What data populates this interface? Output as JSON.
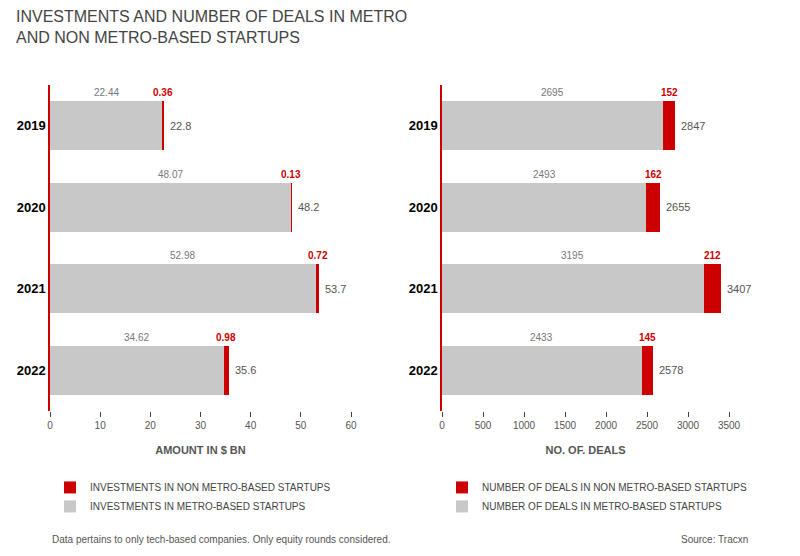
{
  "title": "INVESTMENTS AND NUMBER OF DEALS IN METRO\nAND NON METRO-BASED STARTUPS",
  "annotations": [
    "Data pertains to only tech-based companies. Only equity rounds considered.",
    "Source: Tracxn"
  ],
  "chart_data": [
    {
      "type": "bar",
      "orientation": "horizontal",
      "stacked": true,
      "data_labels": true,
      "grid": false,
      "legend": "bottom",
      "categories": [
        "2019",
        "2020",
        "2021",
        "2022"
      ],
      "series": [
        {
          "name": "INVESTMENTS IN METRO-BASED STARTUPS",
          "color": "#c8c8c8",
          "values": [
            22.44,
            48.07,
            52.98,
            34.62
          ]
        },
        {
          "name": "INVESTMENTS IN NON METRO-BASED STARTUPS",
          "color": "#cc0000",
          "values": [
            0.36,
            0.13,
            0.72,
            0.98
          ]
        }
      ],
      "totals": [
        22.8,
        48.2,
        53.7,
        35.6
      ],
      "xlabel": "AMOUNT IN $ BN",
      "xlim": [
        0,
        60
      ],
      "xticks": [
        0,
        10,
        20,
        30,
        40,
        50,
        60
      ]
    },
    {
      "type": "bar",
      "orientation": "horizontal",
      "stacked": true,
      "data_labels": true,
      "grid": false,
      "legend": "bottom",
      "categories": [
        "2019",
        "2020",
        "2021",
        "2022"
      ],
      "series": [
        {
          "name": "NUMBER OF DEALS IN METRO-BASED STARTUPS",
          "color": "#c8c8c8",
          "values": [
            2695,
            2493,
            3195,
            2433
          ]
        },
        {
          "name": "NUMBER OF DEALS IN NON METRO-BASED STARTUPS",
          "color": "#cc0000",
          "values": [
            152,
            162,
            212,
            145
          ]
        }
      ],
      "totals": [
        2847,
        2655,
        3407,
        2578
      ],
      "xlabel": "NO. OF. DEALS",
      "xlim": [
        0,
        3500
      ],
      "xticks": [
        0,
        500,
        1000,
        1500,
        2000,
        2500,
        3000,
        3500
      ]
    }
  ]
}
